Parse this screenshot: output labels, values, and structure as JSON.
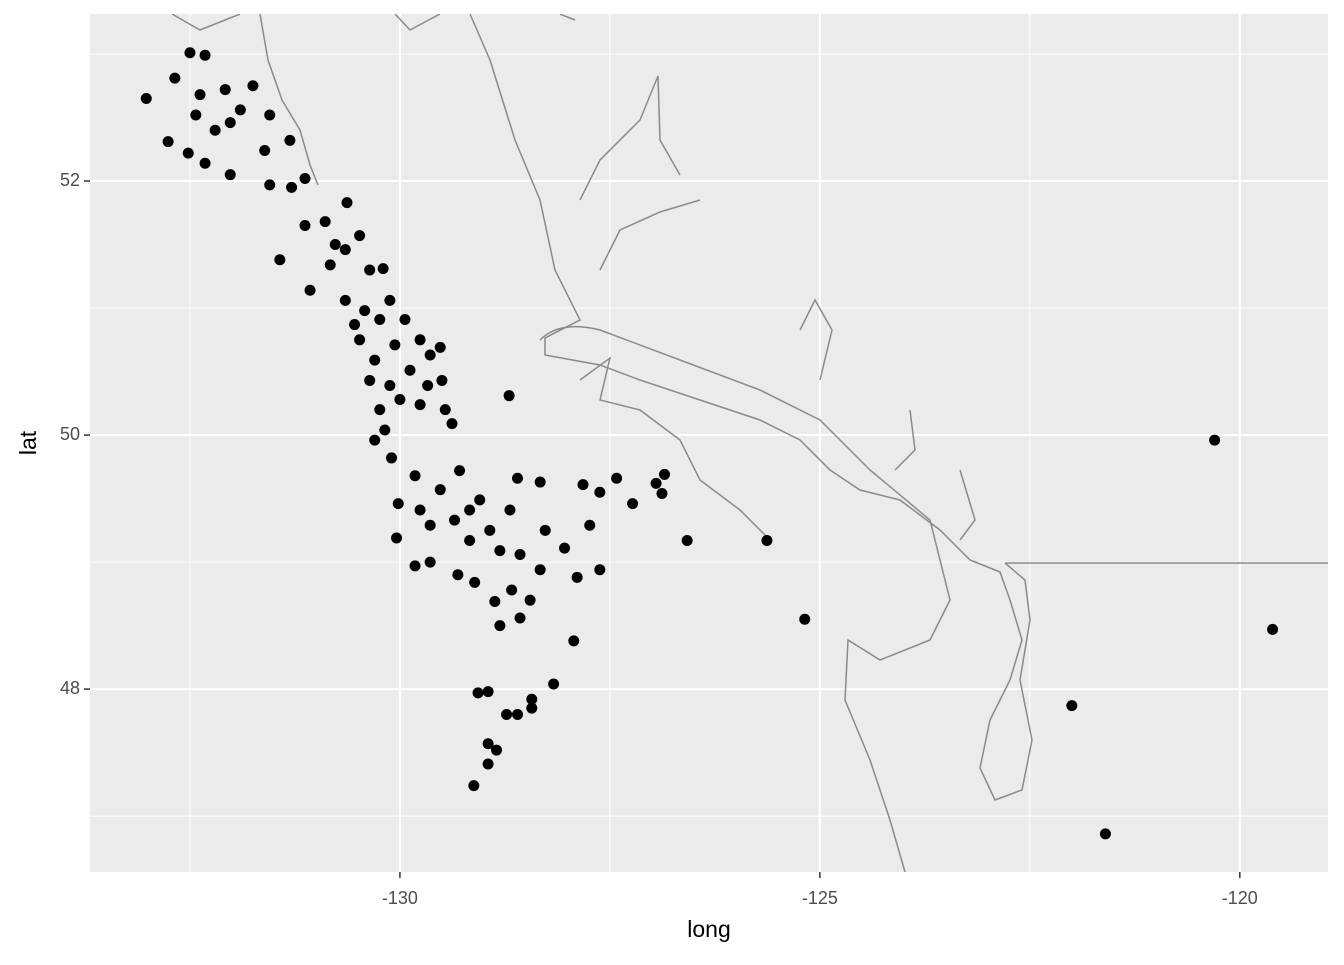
{
  "chart_data": {
    "type": "scatter",
    "x_label": "long",
    "y_label": "lat",
    "xlim": [
      -133.69,
      -118.95
    ],
    "ylim": [
      46.56,
      53.315
    ],
    "xticks": [
      -130,
      -125,
      -120
    ],
    "yticks": [
      48,
      50,
      52
    ],
    "xminor": [
      -132.5,
      -127.5,
      -122.5
    ],
    "yminor": [
      47,
      49,
      51,
      53
    ],
    "grid": true,
    "color": "#000000",
    "panel_color": "#ebebeb",
    "x": [
      -133.02,
      -132.76,
      -132.5,
      -132.68,
      -132.52,
      -132.32,
      -132.02,
      -132.38,
      -132.08,
      -132.2,
      -131.9,
      -131.75,
      -131.55,
      -131.61,
      -131.31,
      -131.55,
      -131.29,
      -131.13,
      -132.32,
      -132.02,
      -132.43,
      -131.43,
      -131.13,
      -130.89,
      -130.63,
      -131.07,
      -130.83,
      -130.48,
      -130.65,
      -130.36,
      -130.2,
      -130.65,
      -130.42,
      -130.12,
      -130.48,
      -130.24,
      -129.94,
      -130.3,
      -130.06,
      -129.76,
      -129.52,
      -130.36,
      -130.12,
      -129.88,
      -129.64,
      -129.5,
      -130.24,
      -130.0,
      -129.76,
      -129.46,
      -129.38,
      -130.3,
      -130.1,
      -129.82,
      -128.7,
      -130.02,
      -130.04,
      -129.76,
      -129.52,
      -129.29,
      -129.64,
      -129.35,
      -129.05,
      -129.17,
      -128.93,
      -128.69,
      -128.6,
      -128.33,
      -128.81,
      -128.57,
      -128.27,
      -129.82,
      -129.64,
      -129.31,
      -129.11,
      -128.87,
      -128.67,
      -128.45,
      -128.81,
      -128.57,
      -128.04,
      -127.89,
      -127.93,
      -127.74,
      -127.82,
      -127.62,
      -127.42,
      -127.62,
      -127.23,
      -126.95,
      -126.85,
      -126.88,
      -126.58,
      -125.63,
      -125.18,
      -129.07,
      -128.95,
      -128.73,
      -128.6,
      -128.43,
      -128.43,
      -128.17,
      -128.95,
      -128.85,
      -128.95,
      -129.12,
      -120.3,
      -119.61,
      -122.0,
      -121.6,
      -130.77,
      -130.54,
      -130.18,
      -129.67,
      -129.17,
      -128.33
    ],
    "y": [
      52.65,
      52.31,
      53.01,
      52.81,
      52.22,
      52.14,
      52.05,
      52.68,
      52.72,
      52.4,
      52.56,
      52.75,
      52.52,
      52.24,
      52.32,
      51.97,
      51.95,
      52.02,
      52.99,
      52.46,
      52.52,
      51.38,
      51.65,
      51.68,
      51.83,
      51.14,
      51.34,
      51.57,
      51.46,
      51.3,
      51.31,
      51.06,
      50.98,
      51.06,
      50.75,
      50.91,
      50.91,
      50.59,
      50.71,
      50.75,
      50.69,
      50.43,
      50.39,
      50.51,
      50.63,
      50.43,
      50.2,
      50.28,
      50.24,
      50.2,
      50.09,
      49.96,
      49.82,
      49.68,
      50.31,
      49.46,
      49.19,
      49.41,
      49.57,
      49.72,
      49.29,
      49.33,
      49.49,
      49.17,
      49.25,
      49.41,
      49.66,
      49.63,
      49.09,
      49.06,
      49.25,
      48.97,
      49.0,
      48.9,
      48.84,
      48.69,
      48.78,
      48.7,
      48.5,
      48.56,
      49.11,
      48.88,
      48.38,
      49.29,
      49.61,
      49.55,
      49.66,
      48.94,
      49.46,
      49.62,
      49.69,
      49.54,
      49.17,
      49.17,
      48.55,
      47.97,
      47.98,
      47.8,
      47.8,
      47.85,
      47.92,
      48.04,
      47.57,
      47.52,
      47.41,
      47.24,
      49.96,
      48.47,
      47.87,
      46.86,
      51.5,
      50.87,
      50.04,
      50.39,
      49.41,
      48.94
    ]
  }
}
